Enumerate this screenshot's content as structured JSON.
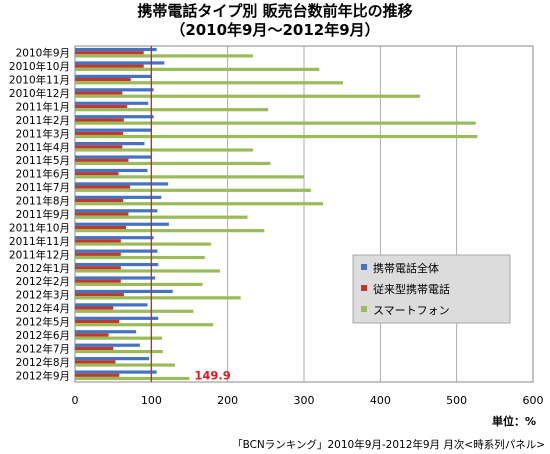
{
  "chart_data": {
    "type": "bar",
    "orientation": "horizontal",
    "title": "携帯電話タイプ別 販売台数前年比の推移",
    "subtitle": "（2010年9月～2012年9月）",
    "unit_label": "単位：%",
    "source": "「BCNランキング」2010年9月-2012年9月 月次<時系列パネル>",
    "xlim": [
      0,
      600
    ],
    "xticks": [
      0,
      100,
      200,
      300,
      400,
      500,
      600
    ],
    "reference_line": 100,
    "grid": true,
    "legend_position": "right-middle",
    "categories": [
      "2010年9月",
      "2010年10月",
      "2010年11月",
      "2010年12月",
      "2011年1月",
      "2011年2月",
      "2011年3月",
      "2011年4月",
      "2011年5月",
      "2011年6月",
      "2011年7月",
      "2011年8月",
      "2011年9月",
      "2011年10月",
      "2011年11月",
      "2011年12月",
      "2012年1月",
      "2012年2月",
      "2012年3月",
      "2012年4月",
      "2012年5月",
      "2012年6月",
      "2012年7月",
      "2012年8月",
      "2012年9月"
    ],
    "series": [
      {
        "name": "携帯電話全体",
        "color": "#4472c4",
        "values": [
          107,
          117,
          100,
          103,
          96,
          103,
          100,
          91,
          100,
          95,
          122,
          113,
          108,
          123,
          103,
          108,
          109,
          105,
          128,
          95,
          109,
          80,
          85,
          97,
          107
        ]
      },
      {
        "name": "従来型携帯電話",
        "color": "#c0392b",
        "values": [
          90,
          90,
          73,
          62,
          68,
          64,
          63,
          62,
          70,
          57,
          72,
          63,
          70,
          67,
          60,
          60,
          60,
          60,
          64,
          50,
          58,
          44,
          50,
          53,
          58
        ]
      },
      {
        "name": "スマートフォン",
        "color": "#9bbb59",
        "values": [
          233,
          320,
          351,
          452,
          253,
          525,
          527,
          233,
          256,
          300,
          309,
          325,
          226,
          248,
          178,
          170,
          190,
          167,
          217,
          155,
          181,
          114,
          115,
          131,
          149.9
        ]
      }
    ],
    "annotations": [
      {
        "text": "149.9",
        "category": "2012年9月",
        "color": "#e8181f"
      }
    ]
  }
}
